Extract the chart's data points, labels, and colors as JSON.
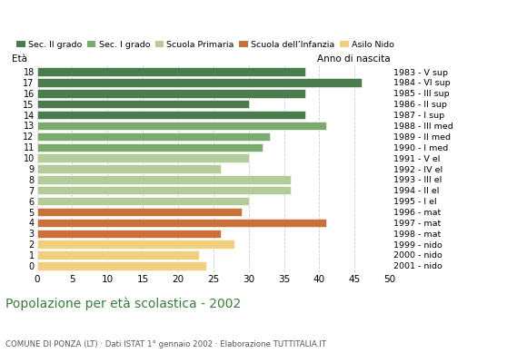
{
  "ages": [
    18,
    17,
    16,
    15,
    14,
    13,
    12,
    11,
    10,
    9,
    8,
    7,
    6,
    5,
    4,
    3,
    2,
    1,
    0
  ],
  "values": [
    38,
    46,
    38,
    30,
    38,
    41,
    33,
    32,
    30,
    26,
    36,
    36,
    30,
    29,
    41,
    26,
    28,
    23,
    24
  ],
  "colors": [
    "#4a7c4e",
    "#4a7c4e",
    "#4a7c4e",
    "#4a7c4e",
    "#4a7c4e",
    "#7aaa6e",
    "#7aaa6e",
    "#7aaa6e",
    "#b3cc99",
    "#b3cc99",
    "#b3cc99",
    "#b3cc99",
    "#b3cc99",
    "#c8713a",
    "#c8713a",
    "#c8713a",
    "#f0d080",
    "#f0d080",
    "#f0d080"
  ],
  "right_labels": [
    "1983 - V sup",
    "1984 - VI sup",
    "1985 - III sup",
    "1986 - II sup",
    "1987 - I sup",
    "1988 - III med",
    "1989 - II med",
    "1990 - I med",
    "1991 - V el",
    "1992 - IV el",
    "1993 - III el",
    "1994 - II el",
    "1995 - I el",
    "1996 - mat",
    "1997 - mat",
    "1998 - mat",
    "1999 - nido",
    "2000 - nido",
    "2001 - nido"
  ],
  "legend_labels": [
    "Sec. II grado",
    "Sec. I grado",
    "Scuola Primaria",
    "Scuola dell’Infanzia",
    "Asilo Nido"
  ],
  "legend_colors": [
    "#4a7c4e",
    "#7aaa6e",
    "#b3cc99",
    "#c8713a",
    "#f0d080"
  ],
  "title": "Popolazione per età scolastica - 2002",
  "subtitle": "COMUNE DI PONZA (LT) · Dati ISTAT 1° gennaio 2002 · Elaborazione TUTTITALIA.IT",
  "label_left": "Età",
  "label_right": "Anno di nascita",
  "xlim": [
    0,
    50
  ],
  "xticks": [
    0,
    5,
    10,
    15,
    20,
    25,
    30,
    35,
    40,
    45,
    50
  ],
  "bar_height": 0.78
}
